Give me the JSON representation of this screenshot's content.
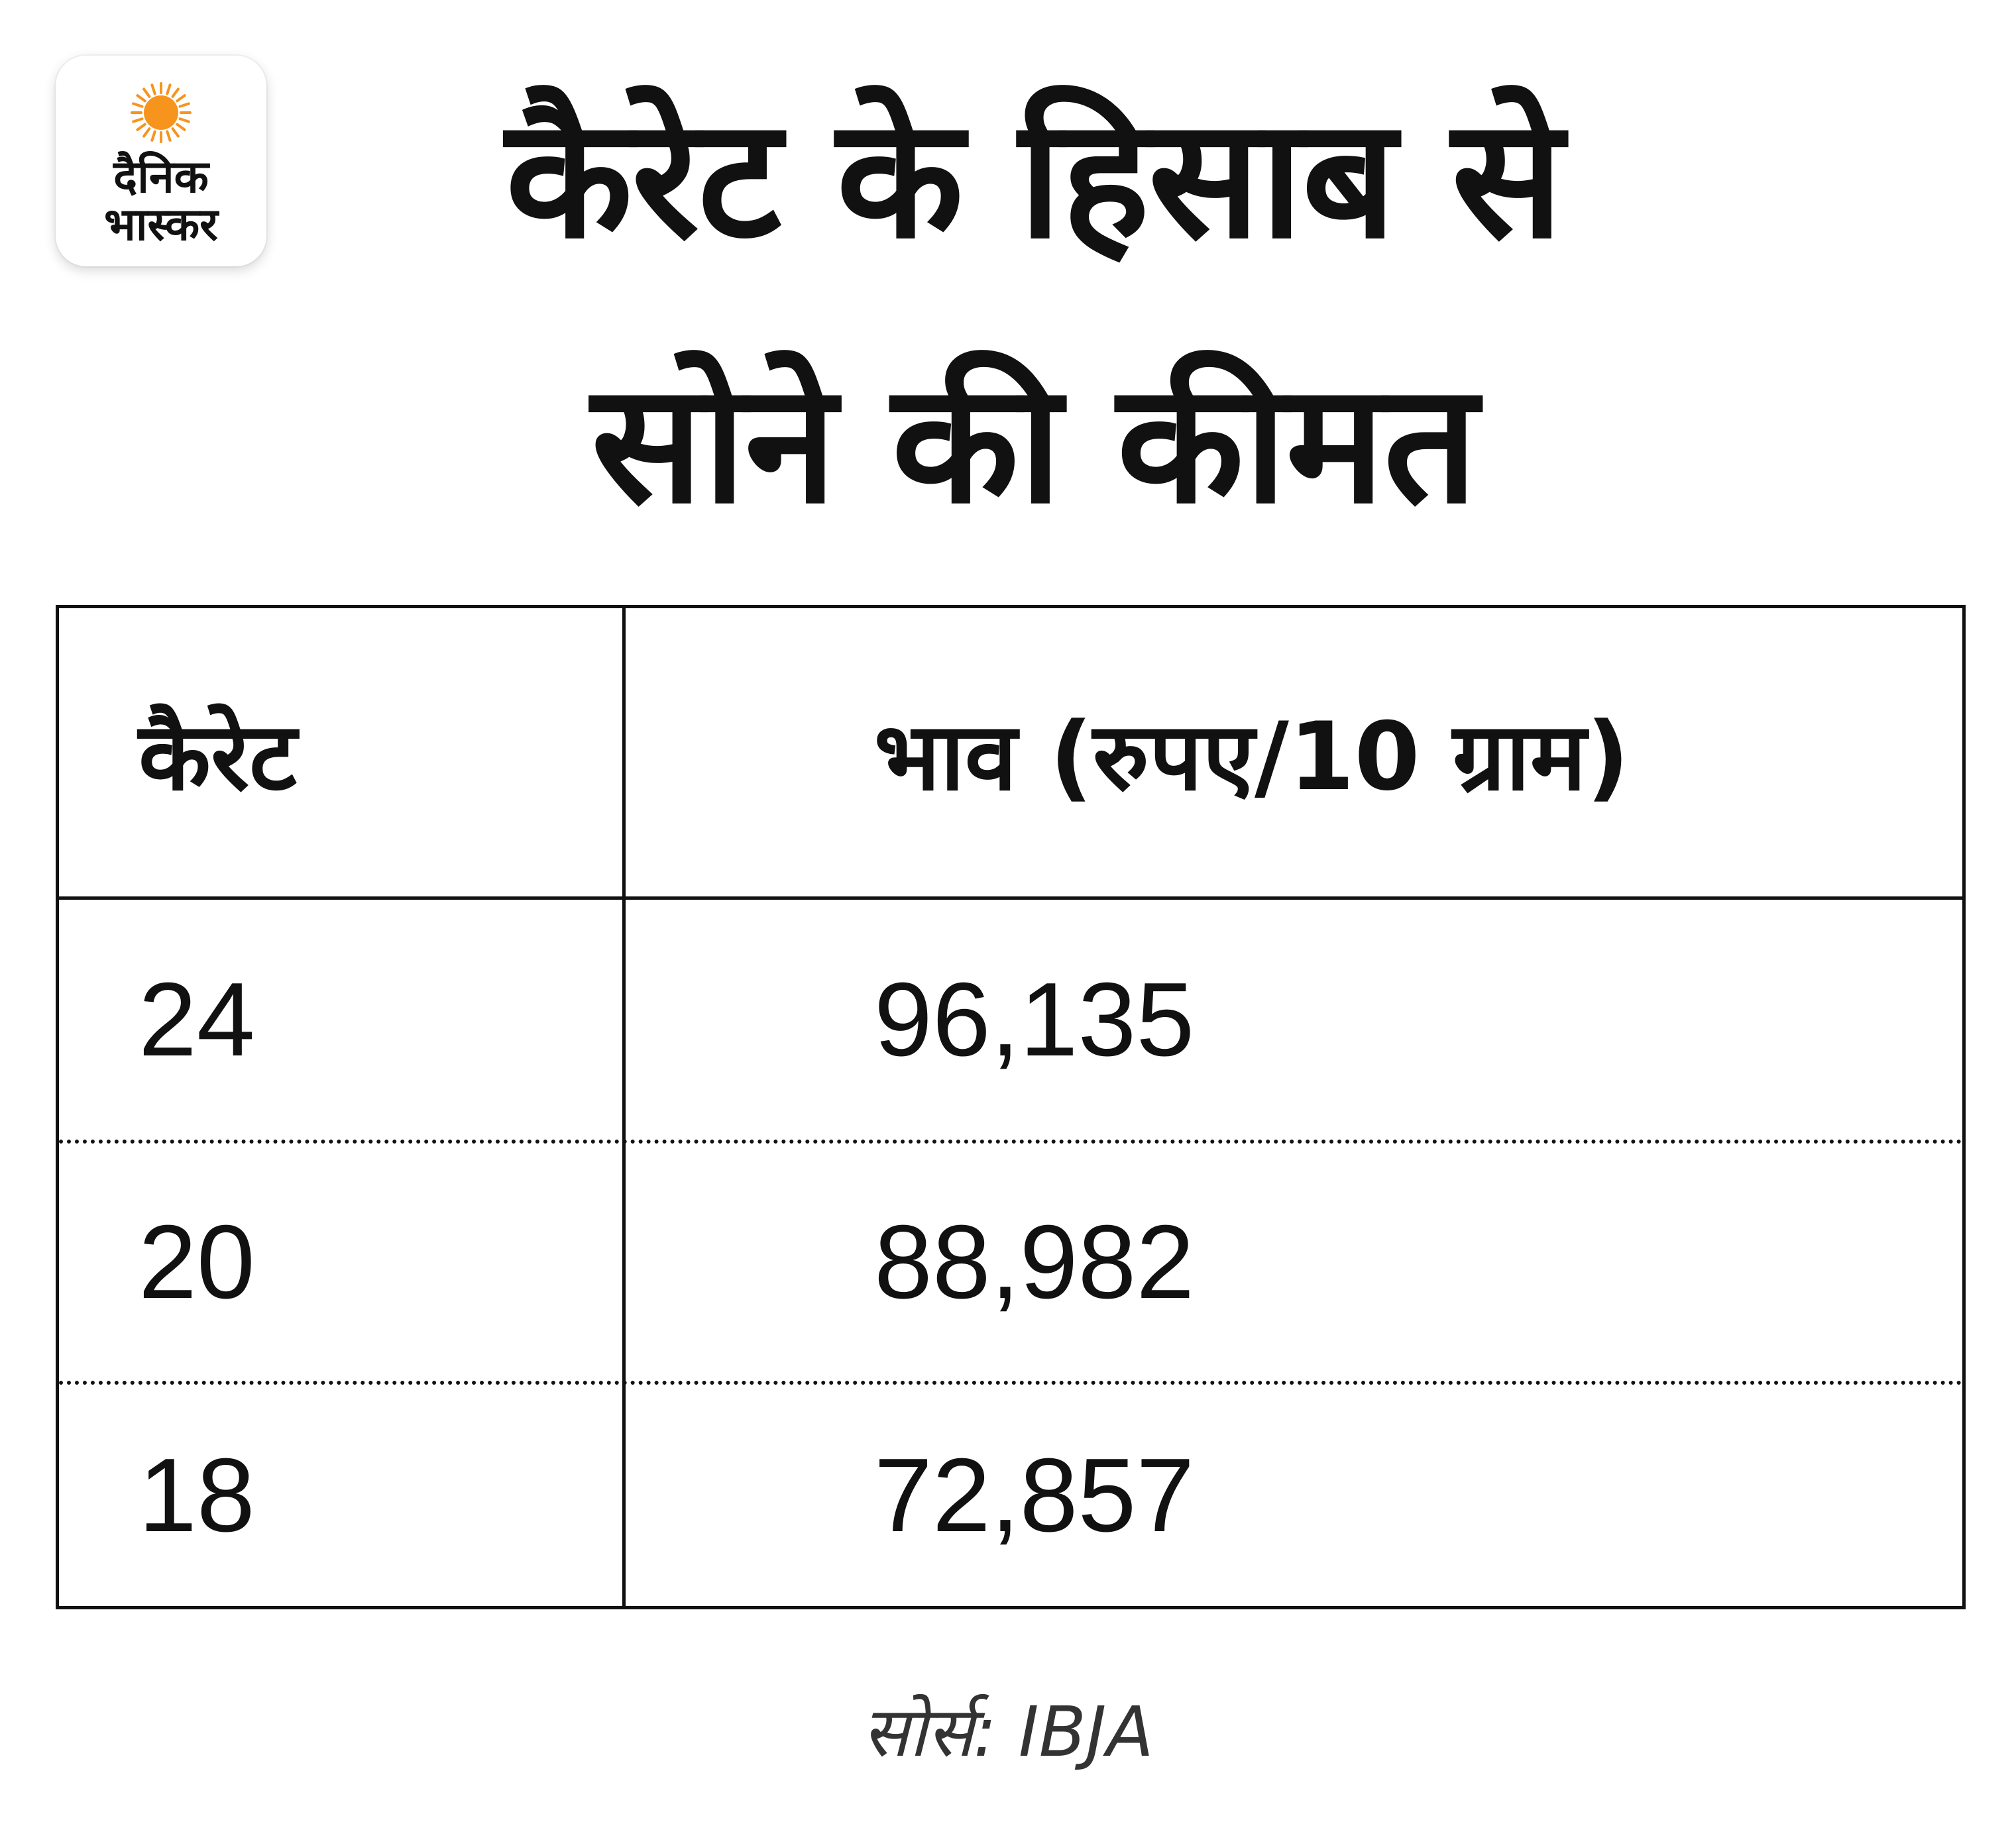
{
  "brand": {
    "logo_line1": "दैनिक",
    "logo_line2": "भास्कर",
    "sun_color": "#F7941D"
  },
  "chart_data": {
    "type": "table",
    "title_line1": "कैरेट के हिसाब से",
    "title_line2": "सोने की कीमत",
    "columns": [
      "कैरेट",
      "भाव (रुपए/10 ग्राम)"
    ],
    "rows": [
      [
        "24",
        "96,135"
      ],
      [
        "20",
        "88,982"
      ],
      [
        "18",
        "72,857"
      ]
    ],
    "source": "सोर्स: IBJA"
  }
}
